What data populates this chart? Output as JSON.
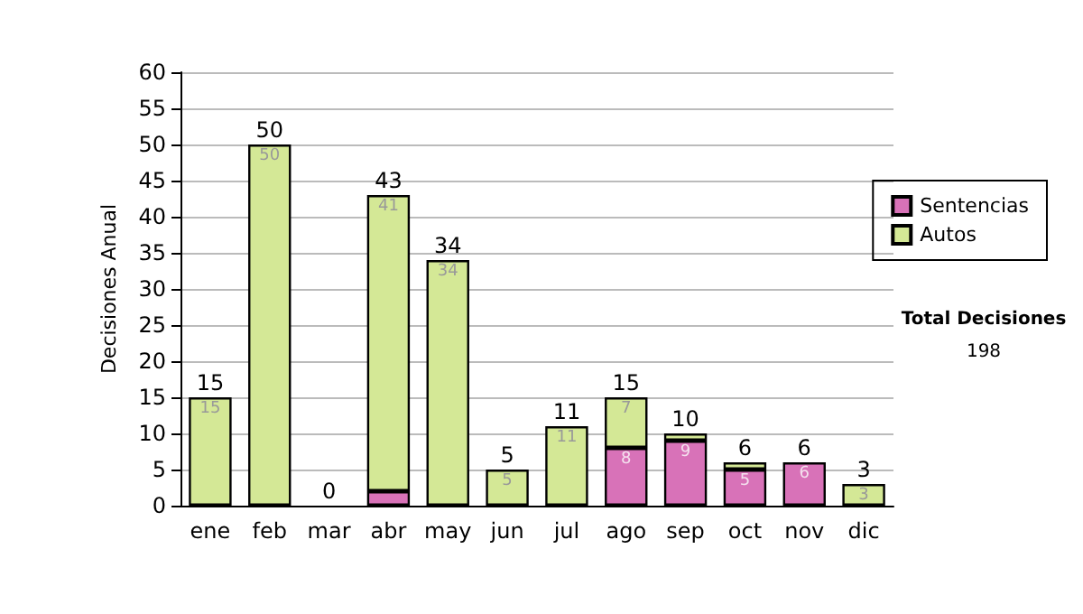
{
  "chart_data": {
    "type": "bar",
    "ylabel": "Decisiones Anual",
    "stacked": true,
    "categories": [
      "ene",
      "feb",
      "mar",
      "abr",
      "may",
      "jun",
      "jul",
      "ago",
      "sep",
      "oct",
      "nov",
      "dic"
    ],
    "series": [
      {
        "name": "Sentencias",
        "color": "#d872b8",
        "values": [
          0,
          0,
          0,
          2,
          0,
          0,
          0,
          8,
          9,
          5,
          6,
          0
        ],
        "value_labels": [
          null,
          null,
          null,
          null,
          null,
          null,
          null,
          "8",
          "9",
          "5",
          "6",
          null
        ]
      },
      {
        "name": "Autos",
        "color": "#d4e896",
        "values": [
          15,
          50,
          0,
          41,
          34,
          5,
          11,
          7,
          1,
          1,
          0,
          3
        ],
        "value_labels": [
          "15",
          "50",
          null,
          "41",
          "34",
          "5",
          "11",
          "7",
          null,
          null,
          null,
          "3"
        ]
      }
    ],
    "totals": [
      "15",
      "50",
      "0",
      "43",
      "34",
      "5",
      "11",
      "15",
      "10",
      "6",
      "6",
      "3"
    ],
    "ylim": [
      0,
      60
    ],
    "yticks": [
      0,
      5,
      10,
      15,
      20,
      25,
      30,
      35,
      40,
      45,
      50,
      55,
      60
    ],
    "grid": "y",
    "legend": "right",
    "annotations": [
      "Total Decisiones",
      "198"
    ]
  }
}
